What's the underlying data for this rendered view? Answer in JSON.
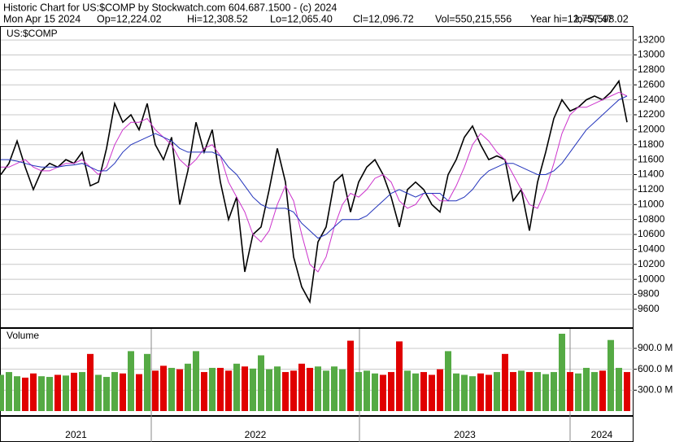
{
  "header": {
    "title": "Historic Chart for US:$COMP by Stockwatch.com 604.687.1500 - (c) 2024",
    "stats": [
      "Mon Apr 15 2024",
      "Op=12,224.02",
      "Hi=12,308.52",
      "Lo=12,065.40",
      "Cl=12,096.72",
      "Vol=550,215,556",
      "Year hi=12,757.47",
      "lo=9,598.02"
    ]
  },
  "chart_data": [
    {
      "type": "line",
      "title": "US:$COMP",
      "series": [
        {
          "color": "#000000",
          "values": [
            11400,
            11550,
            11850,
            11500,
            11200,
            11450,
            11550,
            11500,
            11600,
            11550,
            11700,
            11250,
            11300,
            11750,
            12350,
            12100,
            12200,
            12000,
            12350,
            11800,
            11600,
            11900,
            11000,
            11450,
            12100,
            11700,
            12000,
            11300,
            10800,
            11100,
            10100,
            10600,
            10700,
            11200,
            11750,
            11300,
            10300,
            9900,
            9700,
            10500,
            10700,
            11300,
            11400,
            10900,
            11300,
            11500,
            11600,
            11400,
            11100,
            10700,
            11200,
            11300,
            11200,
            11000,
            10900,
            11400,
            11600,
            11900,
            12050,
            11800,
            11600,
            11650,
            11600,
            11050,
            11200,
            10650,
            11300,
            11700,
            12150,
            12400,
            12250,
            12300,
            12400,
            12450,
            12400,
            12500,
            12650,
            12100
          ]
        },
        {
          "color": "#cc33cc",
          "values": [
            11500,
            11500,
            11550,
            11600,
            11500,
            11450,
            11450,
            11500,
            11550,
            11550,
            11600,
            11500,
            11400,
            11500,
            11800,
            12000,
            12100,
            12100,
            12150,
            12000,
            11900,
            11800,
            11600,
            11500,
            11600,
            11750,
            11800,
            11650,
            11300,
            11100,
            10900,
            10600,
            10500,
            10650,
            11000,
            11250,
            11050,
            10600,
            10200,
            10100,
            10300,
            10700,
            11000,
            11150,
            11100,
            11200,
            11350,
            11400,
            11300,
            11050,
            10950,
            11000,
            11150,
            11150,
            11050,
            11050,
            11250,
            11500,
            11800,
            11950,
            11850,
            11700,
            11600,
            11400,
            11200,
            11000,
            10950,
            11200,
            11550,
            11950,
            12200,
            12300,
            12300,
            12350,
            12400,
            12450,
            12500,
            12450
          ]
        },
        {
          "color": "#2233bb",
          "values": [
            11600,
            11600,
            11580,
            11550,
            11520,
            11500,
            11500,
            11500,
            11520,
            11530,
            11550,
            11500,
            11450,
            11450,
            11550,
            11700,
            11800,
            11850,
            11900,
            11950,
            11900,
            11850,
            11750,
            11700,
            11700,
            11700,
            11700,
            11650,
            11500,
            11400,
            11250,
            11100,
            11000,
            10950,
            10950,
            10950,
            10900,
            10750,
            10650,
            10550,
            10600,
            10700,
            10800,
            10800,
            10800,
            10850,
            10950,
            11050,
            11150,
            11200,
            11150,
            11100,
            11150,
            11150,
            11150,
            11050,
            11050,
            11100,
            11200,
            11350,
            11450,
            11500,
            11550,
            11550,
            11500,
            11450,
            11400,
            11400,
            11450,
            11550,
            11700,
            11850,
            12000,
            12100,
            12200,
            12300,
            12400,
            12450
          ]
        }
      ],
      "xlim": [
        0,
        77.8
      ],
      "xticks": [
        {
          "value": 0,
          "label": "2021"
        },
        {
          "value": 18.5,
          "label": "2022"
        },
        {
          "value": 44.1,
          "label": "2023"
        },
        {
          "value": 70,
          "label": "2024"
        }
      ],
      "ylim": [
        9360,
        13375
      ],
      "yticks": [
        9600,
        9800,
        10000,
        10200,
        10400,
        10600,
        10800,
        11000,
        11200,
        11400,
        11600,
        11800,
        12000,
        12200,
        12400,
        12600,
        12800,
        13000,
        13200
      ],
      "grid": true
    },
    {
      "type": "bar",
      "title": "Volume",
      "up_color": "#55aa44",
      "down_color": "#e00000",
      "values": [
        520,
        560,
        500,
        480,
        540,
        500,
        490,
        520,
        510,
        550,
        560,
        820,
        520,
        490,
        560,
        540,
        860,
        530,
        820,
        580,
        650,
        620,
        600,
        680,
        860,
        560,
        620,
        620,
        580,
        680,
        640,
        610,
        800,
        600,
        640,
        560,
        580,
        680,
        620,
        640,
        580,
        640,
        600,
        1010,
        560,
        580,
        540,
        520,
        560,
        1000,
        580,
        540,
        560,
        520,
        600,
        860,
        540,
        520,
        500,
        540,
        520,
        560,
        820,
        560,
        580,
        560,
        560,
        530,
        560,
        1110,
        560,
        540,
        620,
        560,
        580,
        1020,
        620,
        560
      ],
      "ylim": [
        0,
        1180
      ],
      "yticks": [
        {
          "value": 300,
          "label": "300.0 M"
        },
        {
          "value": 600,
          "label": "600.0 M"
        },
        {
          "value": 900,
          "label": "900.0 M"
        }
      ],
      "grid": true
    }
  ]
}
